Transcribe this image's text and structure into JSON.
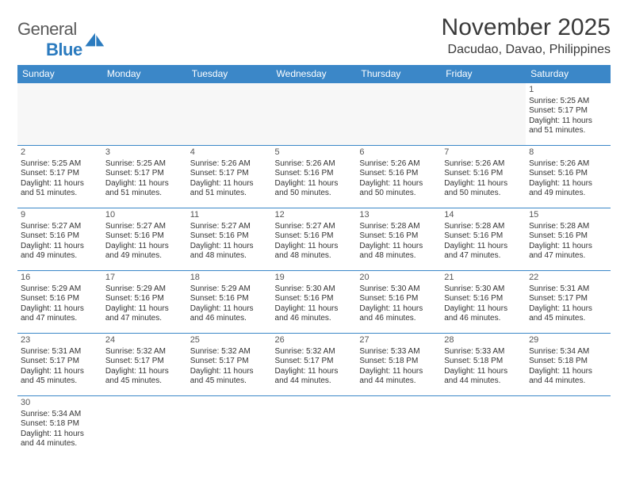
{
  "logo": {
    "text_a": "General",
    "text_b": "Blue"
  },
  "title": "November 2025",
  "location": "Dacudao, Davao, Philippines",
  "colors": {
    "header_bg": "#3b87c8",
    "header_text": "#ffffff",
    "border": "#3b87c8",
    "empty_bg": "#f7f7f7",
    "text": "#333333"
  },
  "daynames": [
    "Sunday",
    "Monday",
    "Tuesday",
    "Wednesday",
    "Thursday",
    "Friday",
    "Saturday"
  ],
  "weeks": [
    [
      {
        "empty": true
      },
      {
        "empty": true
      },
      {
        "empty": true
      },
      {
        "empty": true
      },
      {
        "empty": true
      },
      {
        "empty": true
      },
      {
        "n": "1",
        "sr": "Sunrise: 5:25 AM",
        "ss": "Sunset: 5:17 PM",
        "d1": "Daylight: 11 hours",
        "d2": "and 51 minutes."
      }
    ],
    [
      {
        "n": "2",
        "sr": "Sunrise: 5:25 AM",
        "ss": "Sunset: 5:17 PM",
        "d1": "Daylight: 11 hours",
        "d2": "and 51 minutes."
      },
      {
        "n": "3",
        "sr": "Sunrise: 5:25 AM",
        "ss": "Sunset: 5:17 PM",
        "d1": "Daylight: 11 hours",
        "d2": "and 51 minutes."
      },
      {
        "n": "4",
        "sr": "Sunrise: 5:26 AM",
        "ss": "Sunset: 5:17 PM",
        "d1": "Daylight: 11 hours",
        "d2": "and 51 minutes."
      },
      {
        "n": "5",
        "sr": "Sunrise: 5:26 AM",
        "ss": "Sunset: 5:16 PM",
        "d1": "Daylight: 11 hours",
        "d2": "and 50 minutes."
      },
      {
        "n": "6",
        "sr": "Sunrise: 5:26 AM",
        "ss": "Sunset: 5:16 PM",
        "d1": "Daylight: 11 hours",
        "d2": "and 50 minutes."
      },
      {
        "n": "7",
        "sr": "Sunrise: 5:26 AM",
        "ss": "Sunset: 5:16 PM",
        "d1": "Daylight: 11 hours",
        "d2": "and 50 minutes."
      },
      {
        "n": "8",
        "sr": "Sunrise: 5:26 AM",
        "ss": "Sunset: 5:16 PM",
        "d1": "Daylight: 11 hours",
        "d2": "and 49 minutes."
      }
    ],
    [
      {
        "n": "9",
        "sr": "Sunrise: 5:27 AM",
        "ss": "Sunset: 5:16 PM",
        "d1": "Daylight: 11 hours",
        "d2": "and 49 minutes."
      },
      {
        "n": "10",
        "sr": "Sunrise: 5:27 AM",
        "ss": "Sunset: 5:16 PM",
        "d1": "Daylight: 11 hours",
        "d2": "and 49 minutes."
      },
      {
        "n": "11",
        "sr": "Sunrise: 5:27 AM",
        "ss": "Sunset: 5:16 PM",
        "d1": "Daylight: 11 hours",
        "d2": "and 48 minutes."
      },
      {
        "n": "12",
        "sr": "Sunrise: 5:27 AM",
        "ss": "Sunset: 5:16 PM",
        "d1": "Daylight: 11 hours",
        "d2": "and 48 minutes."
      },
      {
        "n": "13",
        "sr": "Sunrise: 5:28 AM",
        "ss": "Sunset: 5:16 PM",
        "d1": "Daylight: 11 hours",
        "d2": "and 48 minutes."
      },
      {
        "n": "14",
        "sr": "Sunrise: 5:28 AM",
        "ss": "Sunset: 5:16 PM",
        "d1": "Daylight: 11 hours",
        "d2": "and 47 minutes."
      },
      {
        "n": "15",
        "sr": "Sunrise: 5:28 AM",
        "ss": "Sunset: 5:16 PM",
        "d1": "Daylight: 11 hours",
        "d2": "and 47 minutes."
      }
    ],
    [
      {
        "n": "16",
        "sr": "Sunrise: 5:29 AM",
        "ss": "Sunset: 5:16 PM",
        "d1": "Daylight: 11 hours",
        "d2": "and 47 minutes."
      },
      {
        "n": "17",
        "sr": "Sunrise: 5:29 AM",
        "ss": "Sunset: 5:16 PM",
        "d1": "Daylight: 11 hours",
        "d2": "and 47 minutes."
      },
      {
        "n": "18",
        "sr": "Sunrise: 5:29 AM",
        "ss": "Sunset: 5:16 PM",
        "d1": "Daylight: 11 hours",
        "d2": "and 46 minutes."
      },
      {
        "n": "19",
        "sr": "Sunrise: 5:30 AM",
        "ss": "Sunset: 5:16 PM",
        "d1": "Daylight: 11 hours",
        "d2": "and 46 minutes."
      },
      {
        "n": "20",
        "sr": "Sunrise: 5:30 AM",
        "ss": "Sunset: 5:16 PM",
        "d1": "Daylight: 11 hours",
        "d2": "and 46 minutes."
      },
      {
        "n": "21",
        "sr": "Sunrise: 5:30 AM",
        "ss": "Sunset: 5:16 PM",
        "d1": "Daylight: 11 hours",
        "d2": "and 46 minutes."
      },
      {
        "n": "22",
        "sr": "Sunrise: 5:31 AM",
        "ss": "Sunset: 5:17 PM",
        "d1": "Daylight: 11 hours",
        "d2": "and 45 minutes."
      }
    ],
    [
      {
        "n": "23",
        "sr": "Sunrise: 5:31 AM",
        "ss": "Sunset: 5:17 PM",
        "d1": "Daylight: 11 hours",
        "d2": "and 45 minutes."
      },
      {
        "n": "24",
        "sr": "Sunrise: 5:32 AM",
        "ss": "Sunset: 5:17 PM",
        "d1": "Daylight: 11 hours",
        "d2": "and 45 minutes."
      },
      {
        "n": "25",
        "sr": "Sunrise: 5:32 AM",
        "ss": "Sunset: 5:17 PM",
        "d1": "Daylight: 11 hours",
        "d2": "and 45 minutes."
      },
      {
        "n": "26",
        "sr": "Sunrise: 5:32 AM",
        "ss": "Sunset: 5:17 PM",
        "d1": "Daylight: 11 hours",
        "d2": "and 44 minutes."
      },
      {
        "n": "27",
        "sr": "Sunrise: 5:33 AM",
        "ss": "Sunset: 5:18 PM",
        "d1": "Daylight: 11 hours",
        "d2": "and 44 minutes."
      },
      {
        "n": "28",
        "sr": "Sunrise: 5:33 AM",
        "ss": "Sunset: 5:18 PM",
        "d1": "Daylight: 11 hours",
        "d2": "and 44 minutes."
      },
      {
        "n": "29",
        "sr": "Sunrise: 5:34 AM",
        "ss": "Sunset: 5:18 PM",
        "d1": "Daylight: 11 hours",
        "d2": "and 44 minutes."
      }
    ],
    [
      {
        "n": "30",
        "sr": "Sunrise: 5:34 AM",
        "ss": "Sunset: 5:18 PM",
        "d1": "Daylight: 11 hours",
        "d2": "and 44 minutes."
      },
      {
        "empty": true
      },
      {
        "empty": true
      },
      {
        "empty": true
      },
      {
        "empty": true
      },
      {
        "empty": true
      },
      {
        "empty": true
      }
    ]
  ]
}
